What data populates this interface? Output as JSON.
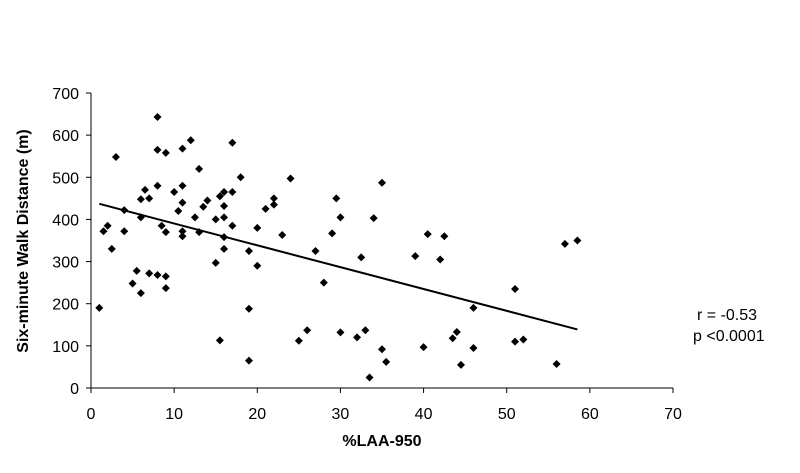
{
  "chart_data": {
    "type": "scatter",
    "xlabel": "%LAA-950",
    "ylabel": "Six-minute Walk Distance (m)",
    "xlim": [
      0,
      70
    ],
    "ylim": [
      0,
      700
    ],
    "xticks": [
      "0",
      "10",
      "20",
      "30",
      "40",
      "50",
      "60",
      "70"
    ],
    "yticks": [
      "0",
      "100",
      "200",
      "300",
      "400",
      "500",
      "600",
      "700"
    ],
    "grid": false,
    "legend": "none",
    "marker": "diamond",
    "marker_color": "#000000",
    "points": [
      [
        1,
        190
      ],
      [
        1.5,
        372
      ],
      [
        2,
        385
      ],
      [
        2.5,
        330
      ],
      [
        3,
        548
      ],
      [
        4,
        422
      ],
      [
        4,
        372
      ],
      [
        5,
        248
      ],
      [
        5.5,
        278
      ],
      [
        6,
        225
      ],
      [
        6,
        405
      ],
      [
        6,
        448
      ],
      [
        6.5,
        470
      ],
      [
        7,
        450
      ],
      [
        7,
        272
      ],
      [
        8,
        268
      ],
      [
        8,
        643
      ],
      [
        8,
        565
      ],
      [
        8,
        480
      ],
      [
        8.5,
        385
      ],
      [
        9,
        265
      ],
      [
        9,
        558
      ],
      [
        9,
        370
      ],
      [
        9,
        237
      ],
      [
        10,
        465
      ],
      [
        10.5,
        420
      ],
      [
        11,
        568
      ],
      [
        11,
        480
      ],
      [
        11,
        440
      ],
      [
        11,
        360
      ],
      [
        11,
        372
      ],
      [
        12,
        588
      ],
      [
        12.5,
        405
      ],
      [
        13,
        520
      ],
      [
        13,
        370
      ],
      [
        13.5,
        430
      ],
      [
        14,
        445
      ],
      [
        15,
        400
      ],
      [
        15,
        297
      ],
      [
        15.5,
        113
      ],
      [
        15.5,
        455
      ],
      [
        16,
        465
      ],
      [
        16,
        432
      ],
      [
        16,
        405
      ],
      [
        16,
        358
      ],
      [
        16,
        330
      ],
      [
        17,
        582
      ],
      [
        17,
        465
      ],
      [
        17,
        385
      ],
      [
        18,
        500
      ],
      [
        19,
        325
      ],
      [
        19,
        65
      ],
      [
        19,
        188
      ],
      [
        20,
        380
      ],
      [
        20,
        290
      ],
      [
        21,
        425
      ],
      [
        22,
        450
      ],
      [
        22,
        435
      ],
      [
        23,
        363
      ],
      [
        24,
        497
      ],
      [
        25,
        112
      ],
      [
        26,
        137
      ],
      [
        27,
        325
      ],
      [
        28,
        250
      ],
      [
        29,
        367
      ],
      [
        29.5,
        450
      ],
      [
        30,
        405
      ],
      [
        30,
        132
      ],
      [
        32,
        120
      ],
      [
        32.5,
        310
      ],
      [
        33,
        137
      ],
      [
        33.5,
        25
      ],
      [
        34,
        403
      ],
      [
        35,
        487
      ],
      [
        35,
        92
      ],
      [
        35.5,
        62
      ],
      [
        39,
        313
      ],
      [
        40,
        97
      ],
      [
        40.5,
        365
      ],
      [
        42,
        305
      ],
      [
        42.5,
        360
      ],
      [
        43.5,
        118
      ],
      [
        44,
        133
      ],
      [
        44.5,
        55
      ],
      [
        46,
        190
      ],
      [
        46,
        95
      ],
      [
        51,
        235
      ],
      [
        51,
        110
      ],
      [
        52,
        115
      ],
      [
        56,
        57
      ],
      [
        57,
        342
      ],
      [
        58.5,
        350
      ]
    ],
    "trendline": {
      "x": [
        1,
        58.5
      ],
      "y": [
        437,
        139
      ]
    },
    "annotations": [
      "r = -0.53",
      "p <0.0001"
    ]
  }
}
